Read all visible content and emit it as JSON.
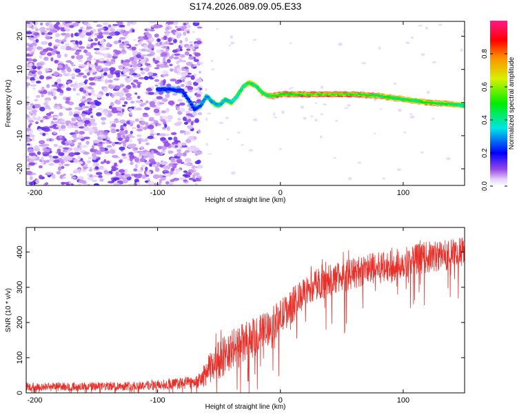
{
  "chart_data": [
    {
      "type": "heatmap",
      "title": "S174.2026.089.09.05.E33",
      "xlabel": "Height of straight line (km)",
      "ylabel": "Frequency (Hz)",
      "xlim": [
        -207,
        150
      ],
      "ylim": [
        -25,
        24.5
      ],
      "xticks": [
        -200,
        -100,
        0,
        100
      ],
      "xtick_labels": [
        "-200",
        "-100",
        "0",
        "100"
      ],
      "yticks": [
        20,
        10,
        0,
        -10,
        -20
      ],
      "ytick_labels": [
        "20",
        "10",
        "0",
        "-10",
        "-20"
      ],
      "colorbar": {
        "label": "Normalized spectral amplitude",
        "range": [
          0.0,
          1.0
        ],
        "ticks": [
          0.0,
          0.2,
          0.4,
          0.6,
          0.8
        ],
        "tick_labels": [
          "0.0",
          "0.2",
          "0.4",
          "0.6",
          "0.8"
        ],
        "colormap": "rainbow"
      },
      "noise_region_x": [
        -207,
        -65
      ],
      "ridge": {
        "x": [
          -100,
          -90,
          -80,
          -75,
          -70,
          -65,
          -60,
          -55,
          -50,
          -45,
          -40,
          -35,
          -30,
          -25,
          -20,
          -15,
          -10,
          -5,
          0,
          20,
          40,
          60,
          80,
          100,
          110,
          120,
          140,
          150
        ],
        "freq_hz": [
          4,
          4,
          3.5,
          1,
          -2,
          -1,
          2,
          0,
          -1,
          1,
          0,
          2,
          5,
          6,
          5,
          3,
          2,
          2,
          2.5,
          2.5,
          2.5,
          2.5,
          2,
          1,
          0.5,
          0,
          -0.5,
          -1
        ],
        "amplitude": [
          0.3,
          0.35,
          0.3,
          0.4,
          0.35,
          0.45,
          0.5,
          0.55,
          0.55,
          0.6,
          0.6,
          0.65,
          0.7,
          0.8,
          0.7,
          0.75,
          0.75,
          0.85,
          0.95,
          0.97,
          1.0,
          0.97,
          0.85,
          0.8,
          0.75,
          0.9,
          0.8,
          0.6
        ]
      }
    },
    {
      "type": "line",
      "xlabel": "Height of straight line (km)",
      "ylabel": "SNR (10 * v/v)",
      "xlim": [
        -207,
        150
      ],
      "ylim": [
        0,
        470
      ],
      "xticks": [
        -200,
        -100,
        0,
        100
      ],
      "xtick_labels": [
        "-200",
        "-100",
        "0",
        "100"
      ],
      "yticks": [
        0,
        100,
        200,
        300,
        400
      ],
      "ytick_labels": [
        "0",
        "100",
        "200",
        "300",
        "400"
      ],
      "color": "#e8302a",
      "trend": {
        "x": [
          -207,
          -150,
          -100,
          -75,
          -65,
          -60,
          -50,
          -40,
          -30,
          -20,
          -10,
          0,
          10,
          20,
          30,
          40,
          50,
          60,
          70,
          80,
          90,
          100,
          110,
          120,
          130,
          140,
          150
        ],
        "mean": [
          18,
          18,
          22,
          28,
          35,
          60,
          95,
          120,
          140,
          160,
          185,
          215,
          250,
          285,
          310,
          320,
          330,
          340,
          350,
          355,
          360,
          370,
          380,
          385,
          390,
          395,
          400
        ],
        "spread": [
          12,
          12,
          14,
          18,
          22,
          40,
          55,
          60,
          60,
          55,
          50,
          50,
          50,
          45,
          45,
          45,
          45,
          45,
          45,
          45,
          45,
          45,
          45,
          45,
          45,
          45,
          45
        ]
      }
    }
  ]
}
